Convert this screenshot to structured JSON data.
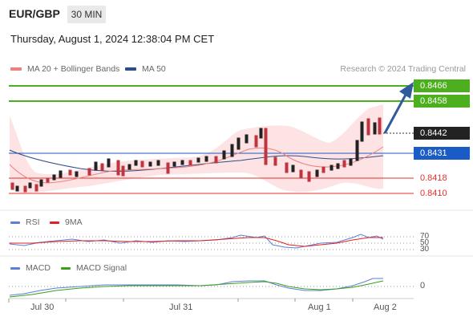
{
  "header": {
    "symbol": "EUR/GBP",
    "timeframe": "30 MIN",
    "timestamp": "Thursday, August 1, 2024 12:38:04 PM CET"
  },
  "legend": {
    "ma20_label": "MA 20 + Bollinger Bands",
    "ma20_color": "#f08080",
    "ma50_label": "MA 50",
    "ma50_color": "#2c4f8c"
  },
  "credit": "Research © 2024 Trading Central",
  "levels": [
    {
      "value": "0.8466",
      "color": "#4caf1d",
      "type": "target"
    },
    {
      "value": "0.8458",
      "color": "#4caf1d",
      "type": "target"
    },
    {
      "value": "0.8442",
      "color": "#222222",
      "type": "current"
    },
    {
      "value": "0.8431",
      "color": "#1b5bc6",
      "type": "pivot"
    },
    {
      "value": "0.8418",
      "color": "#e03030",
      "type": "support"
    },
    {
      "value": "0.8410",
      "color": "#e03030",
      "type": "support"
    }
  ],
  "rsi": {
    "label": "RSI",
    "color": "#5b7fd6",
    "ma_label": "9MA",
    "ma_color": "#e02020",
    "levels": [
      "70",
      "50",
      "30"
    ]
  },
  "macd": {
    "label": "MACD",
    "color": "#5b7fd6",
    "signal_label": "MACD Signal",
    "signal_color": "#3aa01a",
    "zero_label": "0"
  },
  "x_axis": {
    "labels": [
      "Jul 30",
      "Jul 31",
      "Aug 1",
      "Aug 2"
    ]
  }
}
